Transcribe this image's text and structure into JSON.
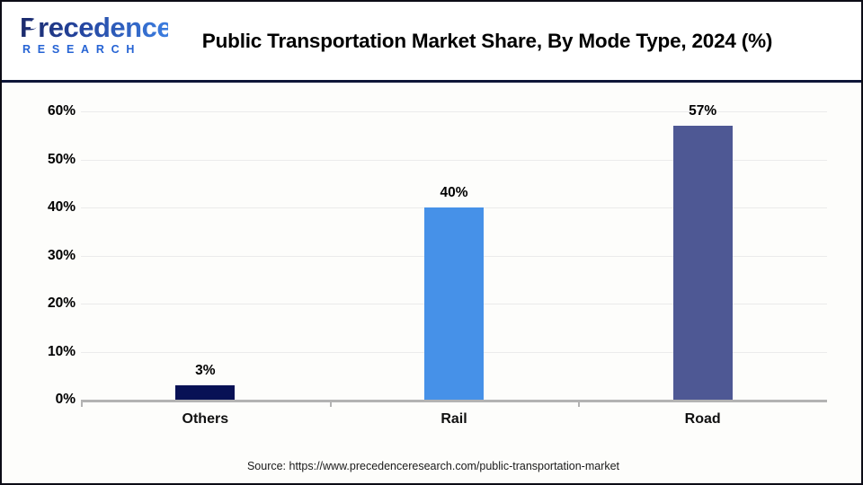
{
  "header": {
    "logo": {
      "brand": "Precedence",
      "sub": "RESEARCH"
    },
    "title": "Public Transportation Market Share, By Mode Type, 2024 (%)"
  },
  "footer": {
    "source": "Source: https://www.precedenceresearch.com/public-transportation-market"
  },
  "theme": {
    "frame_border": "#0c0c16",
    "divider_navy": "#0e1638",
    "axis_gray": "#b3b3b3",
    "gridline_gray": "#ebebeb",
    "logo_navy": "#1b2a6b",
    "logo_blue": "#3b7de0",
    "research_blue": "#2563d4",
    "background": "#fdfdfb"
  },
  "chart_data": {
    "type": "bar",
    "title": "Public Transportation Market Share, By Mode Type, 2024 (%)",
    "categories": [
      "Others",
      "Rail",
      "Road"
    ],
    "values": [
      3,
      40,
      57
    ],
    "data_labels": [
      "3%",
      "40%",
      "57%"
    ],
    "bar_colors": [
      "#081155",
      "#4691e8",
      "#4e5894"
    ],
    "xlabel": "",
    "ylabel": "",
    "ylim": [
      0,
      60
    ],
    "ytick_step": 10,
    "ytick_labels": [
      "0%",
      "10%",
      "20%",
      "30%",
      "40%",
      "50%",
      "60%"
    ],
    "grid": "horizontal",
    "legend": "none"
  }
}
